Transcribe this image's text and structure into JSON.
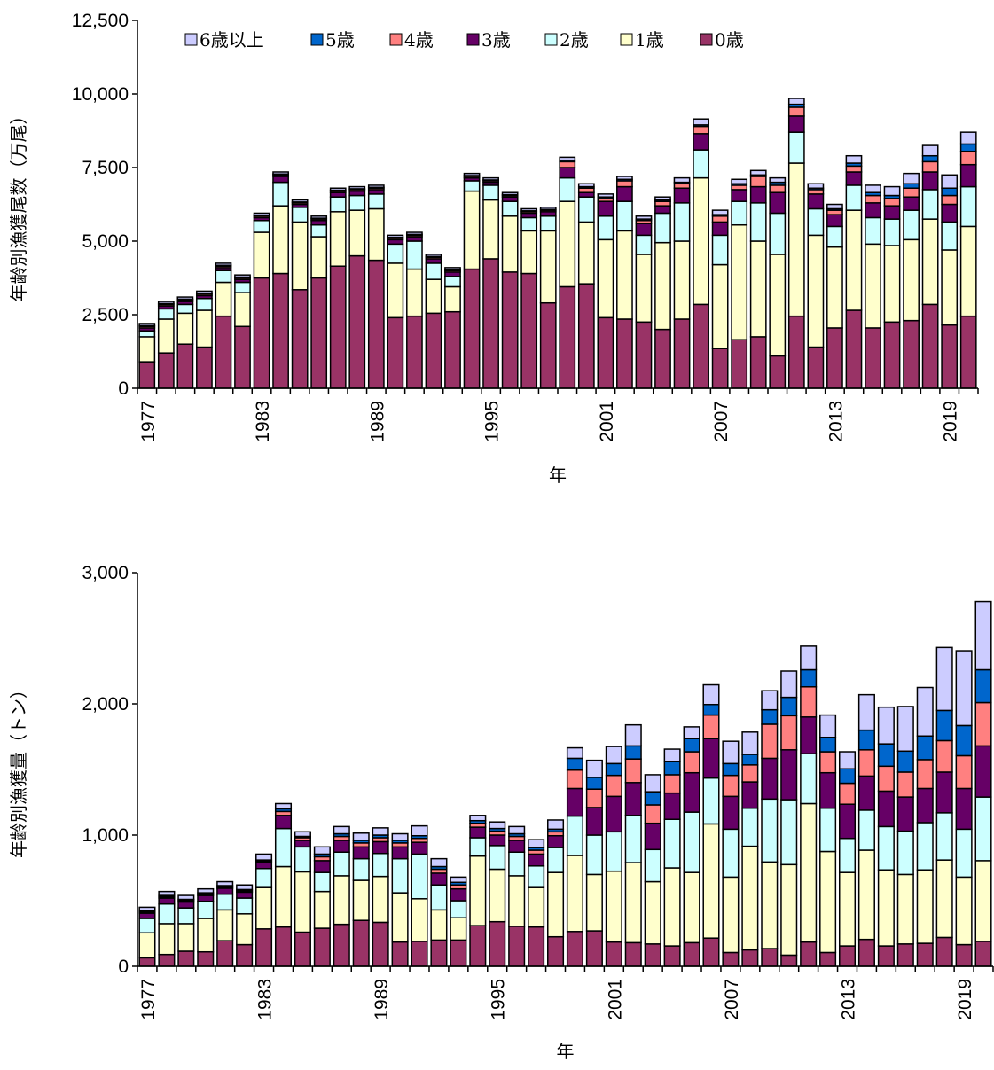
{
  "legend_labels": [
    "6歳以上",
    "5歳",
    "4歳",
    "3歳",
    "2歳",
    "1歳",
    "0歳"
  ],
  "colors": {
    "age0": "#993366",
    "age1": "#FFFFCC",
    "age2": "#CCFFFF",
    "age3": "#660066",
    "age4": "#FF8080",
    "age5": "#0066CC",
    "age6plus": "#CCCCFF"
  },
  "chart_data": [
    {
      "type": "bar",
      "stacked": true,
      "xlabel": "年",
      "ylabel": "年齢別漁獲尾数（万尾）",
      "ylim": [
        0,
        12500
      ],
      "yticks": [
        "0",
        "2,500",
        "5,000",
        "7,500",
        "10,000",
        "12,500"
      ],
      "ytick_values": [
        0,
        2500,
        5000,
        7500,
        10000,
        12500
      ],
      "xtick_labels": [
        "1977",
        "1983",
        "1989",
        "1995",
        "2001",
        "2007",
        "2013",
        "2019"
      ],
      "legend": "top-inside",
      "categories": [
        1977,
        1978,
        1979,
        1980,
        1981,
        1982,
        1983,
        1984,
        1985,
        1986,
        1987,
        1988,
        1989,
        1990,
        1991,
        1992,
        1993,
        1994,
        1995,
        1996,
        1997,
        1998,
        1999,
        2000,
        2001,
        2002,
        2003,
        2004,
        2005,
        2006,
        2007,
        2008,
        2009,
        2010,
        2011,
        2012,
        2013,
        2014,
        2015,
        2016,
        2017,
        2018,
        2019,
        2020
      ],
      "series": [
        {
          "name": "0歳",
          "values": [
            900,
            1200,
            1500,
            1400,
            2450,
            2100,
            3750,
            3900,
            3350,
            3750,
            4150,
            4500,
            4350,
            2400,
            2450,
            2550,
            2600,
            4050,
            4400,
            3950,
            3900,
            2900,
            3450,
            3550,
            2400,
            2350,
            2250,
            2000,
            2350,
            2850,
            1350,
            1650,
            1750,
            1100,
            2450,
            1400,
            2050,
            2650,
            2050,
            2250,
            2300,
            2850,
            2150,
            2450
          ]
        },
        {
          "name": "1歳",
          "values": [
            850,
            1150,
            1050,
            1250,
            1150,
            1150,
            1550,
            2300,
            2300,
            1400,
            1850,
            1550,
            1750,
            1850,
            1600,
            1150,
            850,
            2650,
            2000,
            1900,
            1450,
            2450,
            2900,
            2100,
            2650,
            3000,
            2300,
            2950,
            2650,
            4300,
            2850,
            3900,
            3250,
            3450,
            5200,
            3800,
            2750,
            3400,
            2850,
            2600,
            2750,
            2900,
            2550,
            3050
          ]
        },
        {
          "name": "2歳",
          "values": [
            200,
            350,
            300,
            400,
            400,
            350,
            400,
            800,
            500,
            400,
            500,
            500,
            500,
            650,
            950,
            550,
            350,
            350,
            500,
            500,
            450,
            500,
            800,
            850,
            800,
            1000,
            650,
            1000,
            1300,
            950,
            1000,
            800,
            1300,
            1400,
            1050,
            900,
            700,
            850,
            900,
            900,
            1000,
            1000,
            950,
            1350
          ]
        },
        {
          "name": "3歳",
          "values": [
            100,
            100,
            100,
            100,
            100,
            100,
            100,
            200,
            100,
            150,
            150,
            150,
            150,
            150,
            150,
            150,
            150,
            100,
            100,
            150,
            150,
            150,
            350,
            150,
            500,
            500,
            400,
            250,
            500,
            550,
            450,
            400,
            550,
            700,
            550,
            500,
            400,
            450,
            500,
            450,
            450,
            600,
            600,
            750
          ]
        },
        {
          "name": "4歳",
          "values": [
            50,
            50,
            50,
            50,
            50,
            50,
            50,
            50,
            50,
            50,
            50,
            50,
            50,
            50,
            50,
            50,
            50,
            50,
            50,
            50,
            50,
            50,
            200,
            150,
            100,
            200,
            100,
            150,
            150,
            250,
            200,
            150,
            350,
            250,
            300,
            150,
            150,
            200,
            250,
            250,
            300,
            350,
            300,
            450
          ]
        },
        {
          "name": "5歳",
          "values": [
            30,
            30,
            30,
            30,
            30,
            30,
            30,
            30,
            30,
            30,
            30,
            30,
            30,
            30,
            30,
            30,
            30,
            30,
            30,
            30,
            30,
            30,
            50,
            50,
            50,
            50,
            50,
            50,
            50,
            50,
            50,
            50,
            50,
            100,
            100,
            50,
            50,
            100,
            100,
            100,
            150,
            200,
            250,
            250
          ]
        },
        {
          "name": "6歳以上",
          "values": [
            70,
            70,
            70,
            70,
            70,
            70,
            70,
            70,
            70,
            70,
            70,
            70,
            70,
            70,
            70,
            70,
            70,
            70,
            70,
            70,
            70,
            70,
            100,
            100,
            100,
            100,
            100,
            100,
            150,
            200,
            150,
            150,
            150,
            150,
            200,
            150,
            150,
            250,
            250,
            300,
            350,
            350,
            450,
            400
          ]
        }
      ]
    },
    {
      "type": "bar",
      "stacked": true,
      "xlabel": "年",
      "ylabel": "年齢別漁獲量（トン）",
      "ylim": [
        0,
        3000
      ],
      "yticks": [
        "0",
        "1,000",
        "2,000",
        "3,000"
      ],
      "ytick_values": [
        0,
        1000,
        2000,
        3000
      ],
      "xtick_labels": [
        "1977",
        "1983",
        "1989",
        "1995",
        "2001",
        "2007",
        "2013",
        "2019"
      ],
      "categories": [
        1977,
        1978,
        1979,
        1980,
        1981,
        1982,
        1983,
        1984,
        1985,
        1986,
        1987,
        1988,
        1989,
        1990,
        1991,
        1992,
        1993,
        1994,
        1995,
        1996,
        1997,
        1998,
        1999,
        2000,
        2001,
        2002,
        2003,
        2004,
        2005,
        2006,
        2007,
        2008,
        2009,
        2010,
        2011,
        2012,
        2013,
        2014,
        2015,
        2016,
        2017,
        2018,
        2019,
        2020
      ],
      "series": [
        {
          "name": "0歳",
          "values": [
            65,
            90,
            115,
            110,
            195,
            165,
            285,
            300,
            260,
            290,
            320,
            350,
            335,
            185,
            190,
            200,
            200,
            310,
            340,
            305,
            300,
            225,
            265,
            270,
            185,
            180,
            170,
            155,
            180,
            215,
            105,
            125,
            135,
            85,
            185,
            105,
            155,
            205,
            155,
            170,
            175,
            220,
            165,
            190
          ]
        },
        {
          "name": "1歳",
          "values": [
            190,
            235,
            210,
            255,
            235,
            235,
            315,
            460,
            460,
            280,
            370,
            305,
            350,
            375,
            325,
            230,
            170,
            530,
            400,
            385,
            300,
            490,
            580,
            430,
            540,
            610,
            475,
            595,
            535,
            870,
            575,
            790,
            660,
            690,
            1055,
            770,
            560,
            680,
            580,
            530,
            560,
            590,
            515,
            615
          ]
        },
        {
          "name": "2歳",
          "values": [
            110,
            150,
            120,
            130,
            120,
            120,
            145,
            290,
            190,
            145,
            180,
            165,
            175,
            260,
            340,
            190,
            130,
            140,
            180,
            180,
            165,
            190,
            300,
            300,
            300,
            360,
            245,
            370,
            460,
            350,
            365,
            290,
            480,
            495,
            380,
            330,
            260,
            305,
            330,
            330,
            360,
            360,
            365,
            485
          ]
        },
        {
          "name": "3歳",
          "values": [
            40,
            45,
            45,
            45,
            45,
            45,
            45,
            100,
            50,
            90,
            90,
            90,
            90,
            90,
            90,
            90,
            90,
            80,
            80,
            90,
            90,
            90,
            210,
            210,
            270,
            250,
            200,
            200,
            300,
            300,
            250,
            200,
            310,
            380,
            280,
            270,
            260,
            260,
            270,
            260,
            260,
            310,
            310,
            390
          ]
        },
        {
          "name": "4歳",
          "values": [
            10,
            10,
            10,
            10,
            10,
            10,
            10,
            30,
            20,
            30,
            30,
            30,
            30,
            30,
            30,
            30,
            30,
            30,
            30,
            30,
            30,
            30,
            140,
            140,
            160,
            180,
            140,
            140,
            160,
            180,
            160,
            130,
            260,
            260,
            230,
            160,
            160,
            200,
            190,
            190,
            220,
            240,
            250,
            330
          ]
        },
        {
          "name": "5歳",
          "values": [
            10,
            10,
            10,
            10,
            10,
            10,
            10,
            20,
            10,
            20,
            20,
            20,
            20,
            20,
            20,
            20,
            20,
            20,
            20,
            20,
            20,
            20,
            90,
            90,
            90,
            100,
            100,
            100,
            100,
            80,
            90,
            80,
            110,
            140,
            130,
            110,
            110,
            150,
            170,
            160,
            180,
            230,
            230,
            250
          ]
        },
        {
          "name": "6歳以上",
          "values": [
            25,
            30,
            30,
            30,
            30,
            35,
            45,
            40,
            35,
            55,
            55,
            55,
            55,
            50,
            75,
            60,
            40,
            40,
            50,
            55,
            60,
            70,
            80,
            130,
            130,
            160,
            130,
            95,
            90,
            150,
            170,
            170,
            145,
            200,
            180,
            170,
            130,
            270,
            280,
            340,
            370,
            480,
            570,
            520
          ]
        }
      ]
    }
  ]
}
